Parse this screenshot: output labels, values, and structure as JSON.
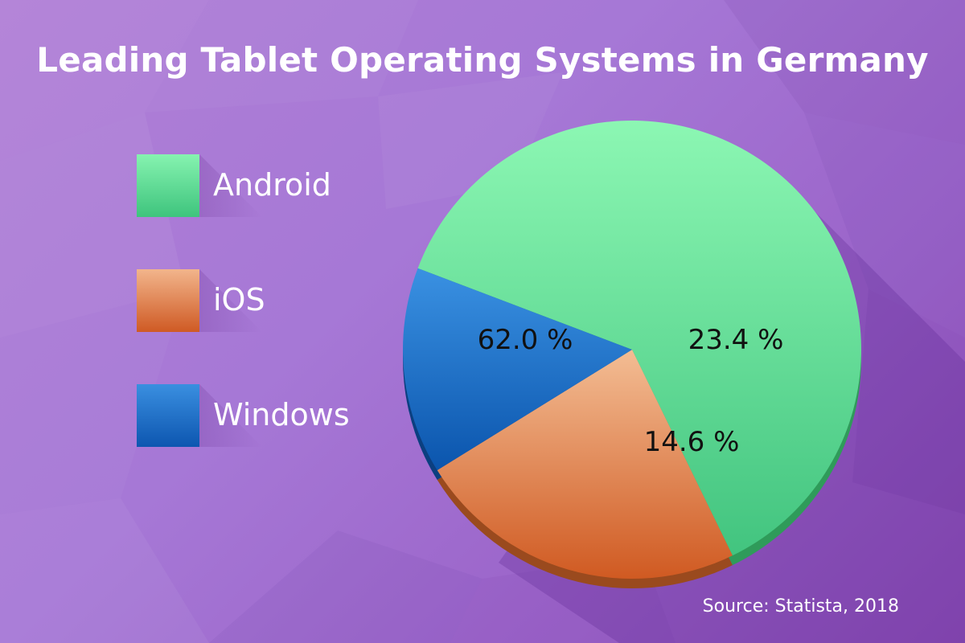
{
  "title": "Leading Tablet Operating Systems in Germany",
  "source": "Source: Statista, 2018",
  "chart_data": {
    "type": "pie",
    "categories": [
      "Android",
      "iOS",
      "Windows"
    ],
    "values": [
      62.0,
      23.4,
      14.6
    ],
    "value_labels": [
      "62.0 %",
      "23.4 %",
      "14.6 %"
    ],
    "legend_position": "left",
    "colors": {
      "Android": "#5fd996",
      "iOS": "#e4885a",
      "Windows": "#1e6fcc"
    }
  }
}
